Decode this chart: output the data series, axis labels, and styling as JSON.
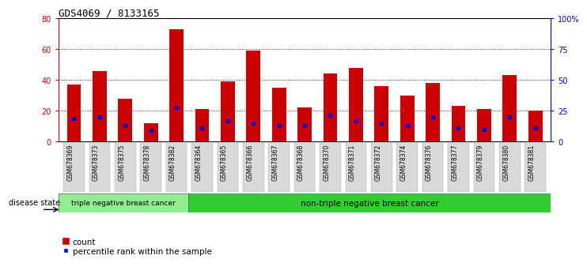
{
  "title": "GDS4069 / 8133165",
  "samples": [
    "GSM678369",
    "GSM678373",
    "GSM678375",
    "GSM678378",
    "GSM678382",
    "GSM678364",
    "GSM678365",
    "GSM678366",
    "GSM678367",
    "GSM678368",
    "GSM678370",
    "GSM678371",
    "GSM678372",
    "GSM678374",
    "GSM678376",
    "GSM678377",
    "GSM678379",
    "GSM678380",
    "GSM678381"
  ],
  "counts": [
    37,
    46,
    28,
    12,
    73,
    21,
    39,
    59,
    35,
    22,
    44,
    48,
    36,
    30,
    38,
    23,
    21,
    43,
    20
  ],
  "percentile_ranks": [
    19,
    20,
    13,
    9,
    28,
    11,
    17,
    15,
    13,
    13,
    21,
    17,
    15,
    13,
    20,
    11,
    10,
    20,
    11
  ],
  "bar_color": "#cc0000",
  "marker_color": "#0000cc",
  "left_ylim": [
    0,
    80
  ],
  "right_ylim": [
    0,
    100
  ],
  "left_yticks": [
    0,
    20,
    40,
    60,
    80
  ],
  "right_yticks": [
    0,
    25,
    50,
    75,
    100
  ],
  "right_yticklabels": [
    "0",
    "25",
    "50",
    "75",
    "100%"
  ],
  "grid_values": [
    20,
    40,
    60
  ],
  "group1_label": "triple negative breast cancer",
  "group2_label": "non-triple negative breast cancer",
  "group1_count": 5,
  "group2_count": 14,
  "disease_state_label": "disease state",
  "legend_count_label": "count",
  "legend_percentile_label": "percentile rank within the sample",
  "bg_color": "#ffffff",
  "bar_width": 0.55,
  "left_spine_color": "#cc0000",
  "right_spine_color": "#0000cc",
  "group1_bg": "#90ee90",
  "group2_bg": "#32cd32"
}
